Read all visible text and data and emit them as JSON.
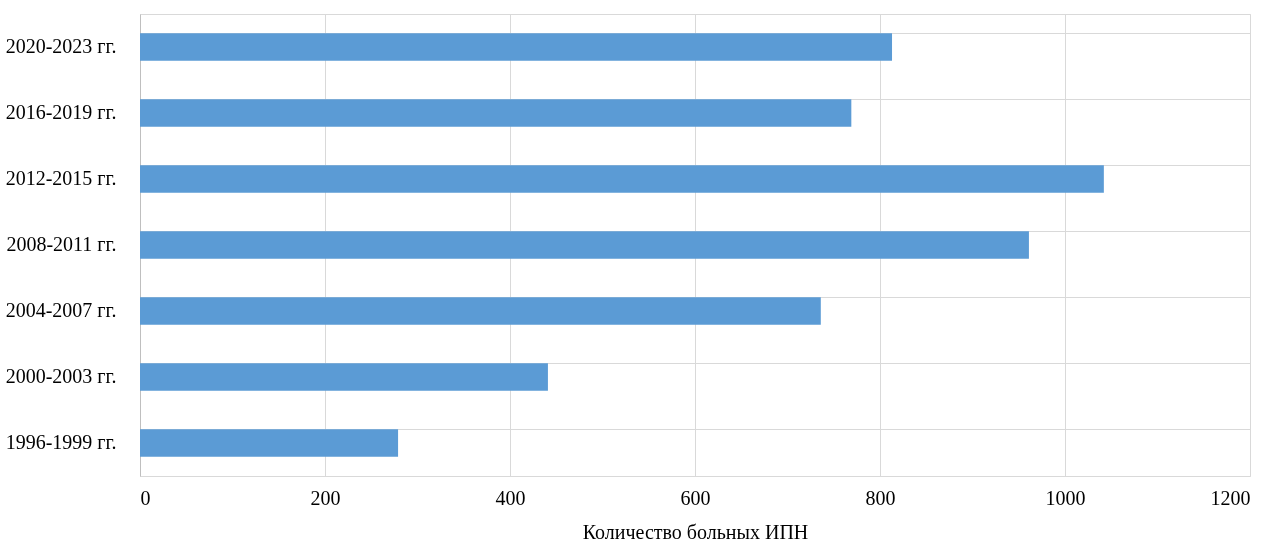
{
  "chart_data": {
    "type": "bar",
    "orientation": "horizontal",
    "xlabel": "Количество больных ИПН",
    "categories": [
      "2020-2023 гг.",
      "2016-2019 гг.",
      "2012-2015 гг.",
      "2008-2011 гг.",
      "2004-2007 гг.",
      "2000-2003 гг.",
      "1996-1999 гг."
    ],
    "values": [
      813,
      769,
      1042,
      961,
      736,
      441,
      279
    ],
    "color": "#5b9bd5",
    "xlim": [
      0,
      1200
    ],
    "xticks": [
      0,
      200,
      400,
      600,
      800,
      1000,
      1200
    ],
    "grid": true
  }
}
